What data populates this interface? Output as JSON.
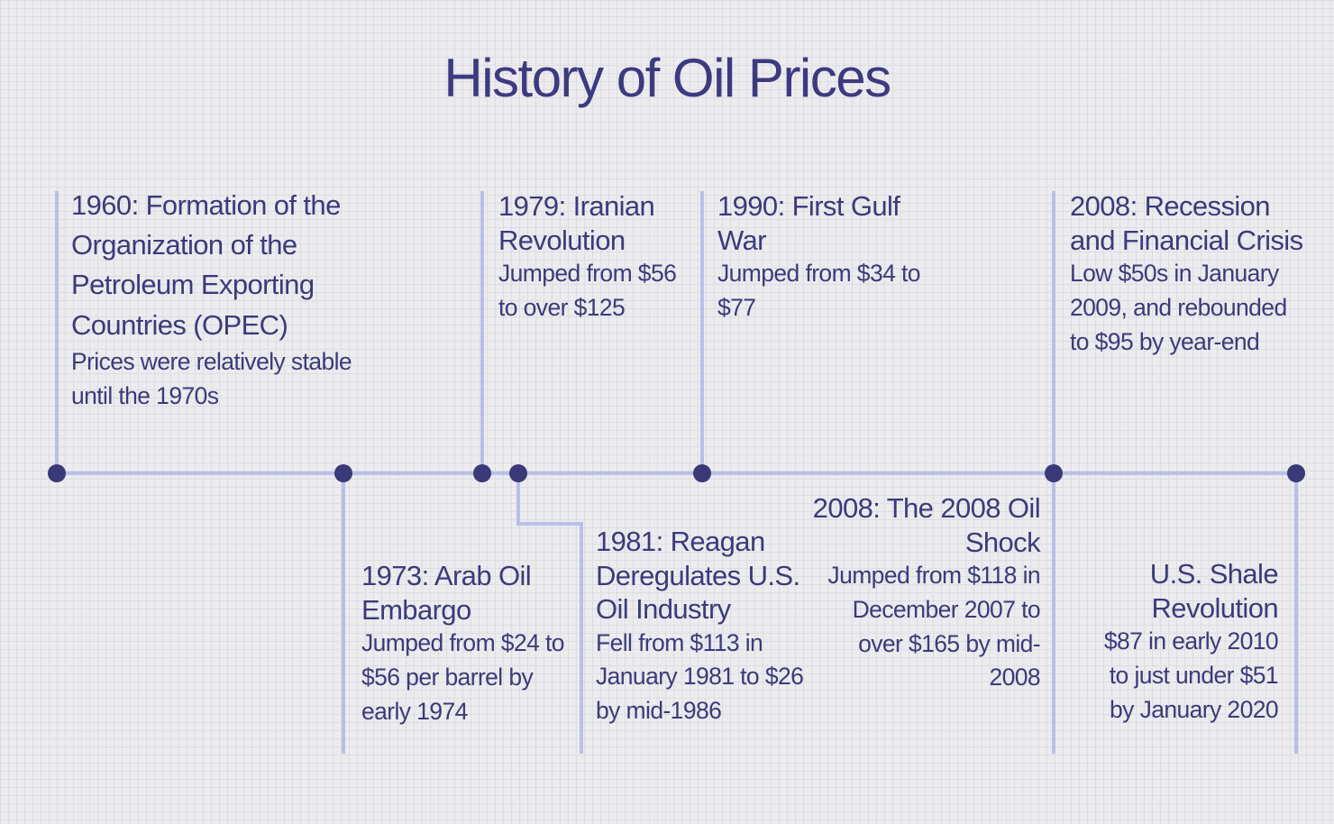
{
  "title": "History of Oil Prices",
  "colors": {
    "text": "#3c3a7c",
    "line": "#b8bfea",
    "dot": "#3b3a78",
    "background": "#ececef"
  },
  "events": [
    {
      "heading": "1960: Formation of the Organization of the Petroleum Exporting Countries (OPEC)",
      "body": "Prices were relatively stable until the 1970s"
    },
    {
      "heading": "1973: Arab Oil Embargo",
      "body": "Jumped from $24 to $56 per barrel by early 1974"
    },
    {
      "heading": "1979: Iranian Revolution",
      "body": "Jumped from $56 to over $125"
    },
    {
      "heading": "1981: Reagan Deregulates U.S. Oil Industry",
      "body": "Fell from $113 in January 1981 to $26 by mid-1986"
    },
    {
      "heading": "1990: First Gulf War",
      "body": "Jumped from $34 to $77"
    },
    {
      "heading": "2008: The 2008 Oil Shock",
      "body": "Jumped from $118 in December 2007 to over $165 by mid-2008"
    },
    {
      "heading": "2008: Recession and Financial Crisis",
      "body": "Low $50s in January 2009, and rebounded to $95 by year-end"
    },
    {
      "heading": "U.S. Shale Revolution",
      "body": "$87 in early 2010 to just under $51 by January 2020"
    }
  ]
}
